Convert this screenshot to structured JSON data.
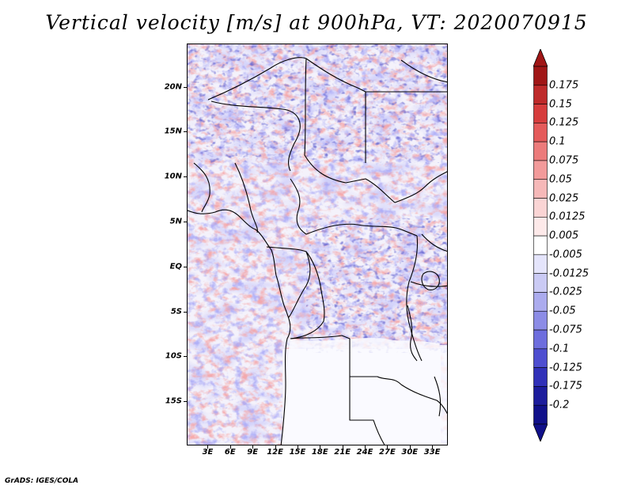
{
  "title": "Vertical velocity [m/s] at 900hPa, VT: 2020070915",
  "credit": "GrADS: IGES/COLA",
  "map": {
    "lat_labels": [
      "20N",
      "15N",
      "10N",
      "5N",
      "EQ",
      "5S",
      "10S",
      "15S"
    ],
    "lat_values": [
      20,
      15,
      10,
      5,
      0,
      -5,
      -10,
      -15
    ],
    "lon_labels": [
      "3E",
      "6E",
      "9E",
      "12E",
      "15E",
      "18E",
      "21E",
      "24E",
      "27E",
      "30E",
      "33E"
    ],
    "lon_values": [
      3,
      6,
      9,
      12,
      15,
      18,
      21,
      24,
      27,
      30,
      33
    ],
    "lat_range": [
      -19.9,
      24.8
    ],
    "lon_range": [
      0.2,
      35.1
    ]
  },
  "colorbar": {
    "labels": [
      "0.175",
      "0.15",
      "0.125",
      "0.1",
      "0.075",
      "0.05",
      "0.025",
      "0.0125",
      "0.005",
      "-0.005",
      "-0.0125",
      "-0.025",
      "-0.05",
      "-0.075",
      "-0.1",
      "-0.125",
      "-0.175",
      "-0.2"
    ],
    "colors": [
      "#a01616",
      "#be2a2a",
      "#d63c3c",
      "#e45a5a",
      "#ec7b7b",
      "#f29a9a",
      "#f6b8b8",
      "#fad4d4",
      "#fde9e9",
      "#ffffff",
      "#e4e4fb",
      "#cacaf4",
      "#ababee",
      "#8c8ce6",
      "#6d6ddd",
      "#4d4dd0",
      "#3030b8",
      "#1c1c9c",
      "#10108a"
    ],
    "top_color": "#a01616",
    "bottom_color": "#10108a"
  }
}
